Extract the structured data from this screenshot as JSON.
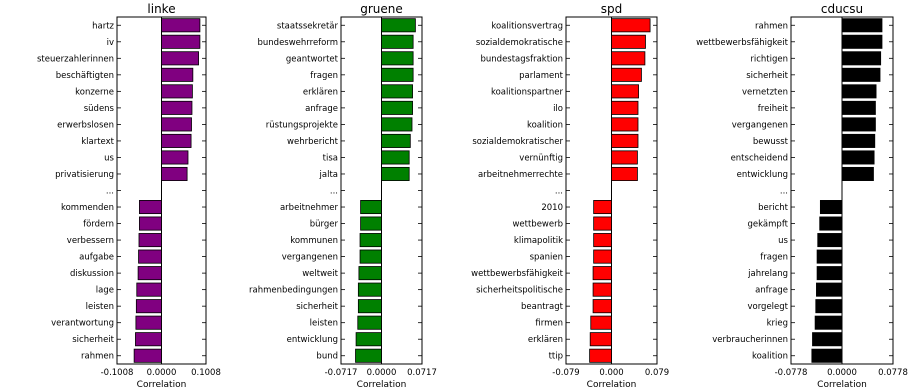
{
  "chart_data": [
    {
      "type": "bar",
      "orientation": "horizontal",
      "title": "linke",
      "xlabel": "Correlation",
      "xlim": [
        -0.1008,
        0.1008
      ],
      "xticks": [
        "-0.1008",
        "0.0000",
        "0.1008"
      ],
      "color": "#800080",
      "categories": [
        "hartz",
        "iv",
        "steuerzahlerinnen",
        "beschäftigten",
        "konzerne",
        "südens",
        "erwerbslosen",
        "klartext",
        "us",
        "privatisierung",
        "...",
        "kommenden",
        "fördern",
        "verbessern",
        "aufgabe",
        "diskussion",
        "lage",
        "leisten",
        "verantwortung",
        "sicherheit",
        "rahmen"
      ],
      "values": [
        0.087,
        0.087,
        0.084,
        0.071,
        0.07,
        0.069,
        0.068,
        0.067,
        0.06,
        0.058,
        null,
        -0.05,
        -0.05,
        -0.051,
        -0.052,
        -0.053,
        -0.056,
        -0.057,
        -0.058,
        -0.059,
        -0.062
      ]
    },
    {
      "type": "bar",
      "orientation": "horizontal",
      "title": "gruene",
      "xlabel": "Correlation",
      "xlim": [
        -0.0717,
        0.0717
      ],
      "xticks": [
        "-0.0717",
        "0.0000",
        "0.0717"
      ],
      "color": "#008000",
      "categories": [
        "staatssekretär",
        "bundeswehrreform",
        "geantwortet",
        "fragen",
        "erklären",
        "anfrage",
        "rüstungsprojekte",
        "wehrbericht",
        "tisa",
        "jalta",
        "...",
        "arbeitnehmer",
        "bürger",
        "kommunen",
        "vergangenen",
        "weltweit",
        "rahmenbedingungen",
        "sicherheit",
        "leisten",
        "entwicklung",
        "bund"
      ],
      "values": [
        0.06,
        0.056,
        0.056,
        0.056,
        0.055,
        0.055,
        0.054,
        0.051,
        0.049,
        0.049,
        null,
        -0.037,
        -0.037,
        -0.038,
        -0.038,
        -0.04,
        -0.041,
        -0.041,
        -0.042,
        -0.045,
        -0.046
      ]
    },
    {
      "type": "bar",
      "orientation": "horizontal",
      "title": "spd",
      "xlabel": "Correlation",
      "xlim": [
        -0.079,
        0.079
      ],
      "xticks": [
        "-0.079",
        "0.000",
        "0.079"
      ],
      "color": "#ff0000",
      "categories": [
        "koalitionsvertrag",
        "sozialdemokratische",
        "bundestagsfraktion",
        "parlament",
        "koalitionspartner",
        "ilo",
        "koalition",
        "sozialdemokratischer",
        "vernünftig",
        "arbeitnehmerrechte",
        "...",
        "2010",
        "wettbewerb",
        "klimapolitik",
        "spanien",
        "wettbewerbsfähigkeit",
        "sicherheitspolitische",
        "beantragt",
        "firmen",
        "erklären",
        "ttip"
      ],
      "values": [
        0.067,
        0.059,
        0.058,
        0.052,
        0.047,
        0.046,
        0.046,
        0.046,
        0.045,
        0.045,
        null,
        -0.031,
        -0.031,
        -0.031,
        -0.031,
        -0.032,
        -0.032,
        -0.032,
        -0.036,
        -0.037,
        -0.038
      ]
    },
    {
      "type": "bar",
      "orientation": "horizontal",
      "title": "cducsu",
      "xlabel": "Correlation",
      "xlim": [
        -0.0778,
        0.0778
      ],
      "xticks": [
        "-0.0778",
        "0.0000",
        "0.0778"
      ],
      "color": "#000000",
      "categories": [
        "rahmen",
        "wettbewerbsfähigkeit",
        "richtigen",
        "sicherheit",
        "vernetzten",
        "freiheit",
        "vergangenen",
        "bewusst",
        "entscheidend",
        "entwicklung",
        "...",
        "bericht",
        "gekämpft",
        "us",
        "fragen",
        "jahrelang",
        "anfrage",
        "vorgelegt",
        "krieg",
        "verbraucherinnen",
        "koalition"
      ],
      "values": [
        0.061,
        0.061,
        0.059,
        0.058,
        0.052,
        0.051,
        0.051,
        0.05,
        0.049,
        0.048,
        null,
        -0.033,
        -0.034,
        -0.037,
        -0.038,
        -0.038,
        -0.039,
        -0.04,
        -0.041,
        -0.045,
        -0.046
      ]
    }
  ]
}
